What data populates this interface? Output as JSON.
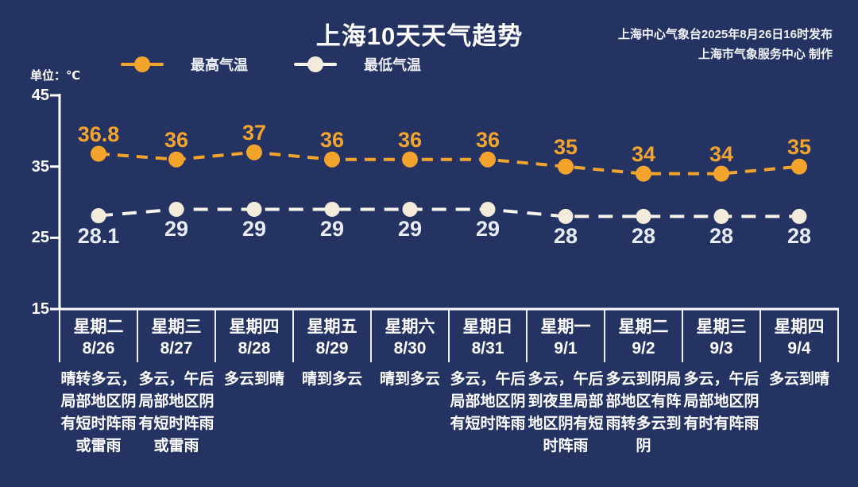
{
  "page": {
    "background_color": "#253363"
  },
  "header": {
    "title": "上海10天天气趋势",
    "issued_line1": "上海中心气象台2025年8月26日16时发布",
    "issued_line2": "上海市气象服务中心 制作",
    "unit_label": "单位：℃"
  },
  "legend": [
    {
      "label": "最高气温",
      "color": "#F2A42C",
      "dot_color": "#F2A42C"
    },
    {
      "label": "最低气温",
      "color": "#F7F4EC",
      "dot_color": "#F2EBDB"
    }
  ],
  "chart_data": {
    "type": "line",
    "title": "上海10天天气趋势",
    "unit": "℃",
    "ylim": [
      15,
      45
    ],
    "y_ticks": [
      45,
      35,
      25,
      15
    ],
    "grid": false,
    "legend_position": "top-left",
    "line_style": "dashed",
    "categories": [
      {
        "weekday": "星期二",
        "date": "8/26",
        "weather": "晴转多云，\n局部地区阴\n有短时阵雨\n或雷雨"
      },
      {
        "weekday": "星期三",
        "date": "8/27",
        "weather": "多云，午后\n局部地区阴\n有短时阵雨\n或雷雨"
      },
      {
        "weekday": "星期四",
        "date": "8/28",
        "weather": "多云到晴"
      },
      {
        "weekday": "星期五",
        "date": "8/29",
        "weather": "晴到多云"
      },
      {
        "weekday": "星期六",
        "date": "8/30",
        "weather": "晴到多云"
      },
      {
        "weekday": "星期日",
        "date": "8/31",
        "weather": "多云，午后\n局部地区阴\n有短时阵雨"
      },
      {
        "weekday": "星期一",
        "date": "9/1",
        "weather": "多云，午后\n到夜里局部\n地区阴有短\n时阵雨"
      },
      {
        "weekday": "星期二",
        "date": "9/2",
        "weather": "多云到阴局\n部地区有阵\n雨转多云到\n阴"
      },
      {
        "weekday": "星期三",
        "date": "9/3",
        "weather": "多云，午后\n局部地区阴\n有时有阵雨"
      },
      {
        "weekday": "星期四",
        "date": "9/4",
        "weather": "多云到晴"
      }
    ],
    "series": [
      {
        "name": "最高气温",
        "color": "#F2A42C",
        "label_color": "#F2A42C",
        "values": [
          36.8,
          36,
          37,
          36,
          36,
          36,
          35,
          34,
          34,
          35
        ]
      },
      {
        "name": "最低气温",
        "color": "#F7F4EC",
        "label_color": "#E9ECF4",
        "marker_color": "#F2EBDB",
        "values": [
          28.1,
          29,
          29,
          29,
          29,
          29,
          28,
          28,
          28,
          28
        ]
      }
    ]
  }
}
